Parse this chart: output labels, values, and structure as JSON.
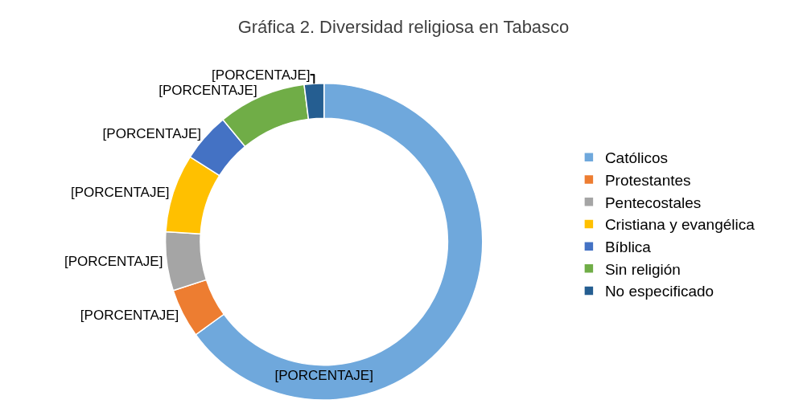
{
  "chart_data": {
    "type": "donut",
    "title": "Gráfica 2. Diversidad religiosa en Tabasco",
    "categories": [
      "Católicos",
      "Protestantes",
      "Pentecostales",
      "Cristiana y evangélica",
      "Bíblica",
      "Sin religión",
      "No especificado"
    ],
    "values": [
      65,
      5,
      6,
      8,
      5,
      9,
      2
    ],
    "colors": [
      "#6fa8dc",
      "#ed7d31",
      "#a5a5a5",
      "#ffc000",
      "#4472c4",
      "#70ad47",
      "#255e91"
    ],
    "value_labels": [
      "[PORCENTAJE]",
      "[PORCENTAJE]",
      "[PORCENTAJE]",
      "[PORCENTAJE]",
      "[PORCENTAJE]",
      "[PORCENTAJE]",
      "[PORCENTAJE]"
    ],
    "legend": "right"
  }
}
